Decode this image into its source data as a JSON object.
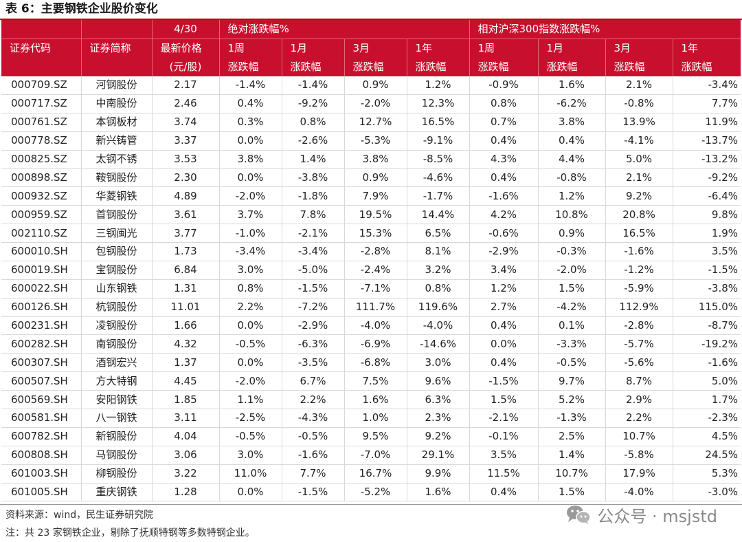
{
  "title": "表 6：主要钢铁企业股价变化",
  "header": {
    "row1": {
      "date": "4/30",
      "abs_group": "绝对涨跌幅%",
      "rel_group": "相对沪深300指数涨跌幅%"
    },
    "row2": {
      "code": "证券代码",
      "name": "证券简称",
      "price": "最新价格",
      "periods": [
        "1周",
        "1月",
        "3月",
        "1年",
        "1周",
        "1月",
        "3月",
        "1年"
      ]
    },
    "row3": {
      "price_unit": "(元/股)",
      "change": "涨跌幅"
    }
  },
  "rows": [
    [
      "000709.SZ",
      "河钢股份",
      "2.17",
      "-1.4%",
      "-1.4%",
      "0.9%",
      "1.2%",
      "-0.9%",
      "1.6%",
      "2.1%",
      "-3.4%"
    ],
    [
      "000717.SZ",
      "中南股份",
      "2.46",
      "0.4%",
      "-9.2%",
      "-2.0%",
      "12.3%",
      "0.8%",
      "-6.2%",
      "-0.8%",
      "7.7%"
    ],
    [
      "000761.SZ",
      "本钢板材",
      "3.74",
      "0.3%",
      "0.8%",
      "12.7%",
      "16.5%",
      "0.7%",
      "3.8%",
      "13.9%",
      "11.9%"
    ],
    [
      "000778.SZ",
      "新兴铸管",
      "3.37",
      "0.0%",
      "-2.6%",
      "-5.3%",
      "-9.1%",
      "0.4%",
      "0.4%",
      "-4.1%",
      "-13.7%"
    ],
    [
      "000825.SZ",
      "太钢不锈",
      "3.53",
      "3.8%",
      "1.4%",
      "3.8%",
      "-8.5%",
      "4.3%",
      "4.4%",
      "5.0%",
      "-13.2%"
    ],
    [
      "000898.SZ",
      "鞍钢股份",
      "2.30",
      "0.0%",
      "-3.8%",
      "0.9%",
      "-4.6%",
      "0.4%",
      "-0.8%",
      "2.1%",
      "-9.2%"
    ],
    [
      "000932.SZ",
      "华菱钢铁",
      "4.89",
      "-2.0%",
      "-1.8%",
      "7.9%",
      "-1.7%",
      "-1.6%",
      "1.2%",
      "9.2%",
      "-6.4%"
    ],
    [
      "000959.SZ",
      "首钢股份",
      "3.61",
      "3.7%",
      "7.8%",
      "19.5%",
      "14.4%",
      "4.2%",
      "10.8%",
      "20.8%",
      "9.8%"
    ],
    [
      "002110.SZ",
      "三钢闽光",
      "3.77",
      "-1.0%",
      "-2.1%",
      "15.3%",
      "6.5%",
      "-0.6%",
      "0.9%",
      "16.5%",
      "1.9%"
    ],
    [
      "600010.SH",
      "包钢股份",
      "1.73",
      "-3.4%",
      "-3.4%",
      "-2.8%",
      "8.1%",
      "-2.9%",
      "-0.3%",
      "-1.6%",
      "3.5%"
    ],
    [
      "600019.SH",
      "宝钢股份",
      "6.84",
      "3.0%",
      "-5.0%",
      "-2.4%",
      "3.2%",
      "3.4%",
      "-2.0%",
      "-1.2%",
      "-1.5%"
    ],
    [
      "600022.SH",
      "山东钢铁",
      "1.31",
      "0.8%",
      "-1.5%",
      "-7.1%",
      "0.8%",
      "1.2%",
      "1.5%",
      "-5.9%",
      "-3.8%"
    ],
    [
      "600126.SH",
      "杭钢股份",
      "11.01",
      "2.2%",
      "-7.2%",
      "111.7%",
      "119.6%",
      "2.7%",
      "-4.2%",
      "112.9%",
      "115.0%"
    ],
    [
      "600231.SH",
      "凌钢股份",
      "1.66",
      "0.0%",
      "-2.9%",
      "-4.0%",
      "-4.0%",
      "0.4%",
      "0.1%",
      "-2.8%",
      "-8.7%"
    ],
    [
      "600282.SH",
      "南钢股份",
      "4.32",
      "-0.5%",
      "-6.3%",
      "-6.9%",
      "-14.6%",
      "0.0%",
      "-3.3%",
      "-5.7%",
      "-19.2%"
    ],
    [
      "600307.SH",
      "酒钢宏兴",
      "1.37",
      "0.0%",
      "-3.5%",
      "-6.8%",
      "3.0%",
      "0.4%",
      "-0.5%",
      "-5.6%",
      "-1.6%"
    ],
    [
      "600507.SH",
      "方大特钢",
      "4.45",
      "-2.0%",
      "6.7%",
      "7.5%",
      "9.6%",
      "-1.5%",
      "9.7%",
      "8.7%",
      "5.0%"
    ],
    [
      "600569.SH",
      "安阳钢铁",
      "1.85",
      "1.1%",
      "2.2%",
      "1.6%",
      "6.3%",
      "1.5%",
      "5.2%",
      "2.9%",
      "1.7%"
    ],
    [
      "600581.SH",
      "八一钢铁",
      "3.11",
      "-2.5%",
      "-4.3%",
      "1.0%",
      "2.3%",
      "-2.1%",
      "-1.3%",
      "2.2%",
      "-2.3%"
    ],
    [
      "600782.SH",
      "新钢股份",
      "4.04",
      "-0.5%",
      "-0.5%",
      "9.5%",
      "9.2%",
      "-0.1%",
      "2.5%",
      "10.7%",
      "4.5%"
    ],
    [
      "600808.SH",
      "马钢股份",
      "3.06",
      "3.0%",
      "-1.6%",
      "-7.0%",
      "29.1%",
      "3.5%",
      "1.4%",
      "-5.8%",
      "24.5%"
    ],
    [
      "601003.SH",
      "柳钢股份",
      "3.22",
      "11.0%",
      "7.7%",
      "16.7%",
      "9.9%",
      "11.5%",
      "10.7%",
      "17.9%",
      "5.3%"
    ],
    [
      "601005.SH",
      "重庆钢铁",
      "1.28",
      "0.0%",
      "-1.5%",
      "-5.2%",
      "1.6%",
      "0.4%",
      "1.5%",
      "-4.0%",
      "-3.0%"
    ]
  ],
  "footer": {
    "source": "资料来源：wind，民生证券研究院",
    "note": "注：共 23 家钢铁企业，剔除了抚顺特钢等多数特钢企业。"
  },
  "watermark": {
    "icon": "wechat-icon",
    "text": "公众号 · msjstd"
  },
  "colors": {
    "header_bg": "#c8102e",
    "header_text": "#ffffff",
    "title_rule": "#c00000",
    "grid": "#d9d9d9"
  }
}
